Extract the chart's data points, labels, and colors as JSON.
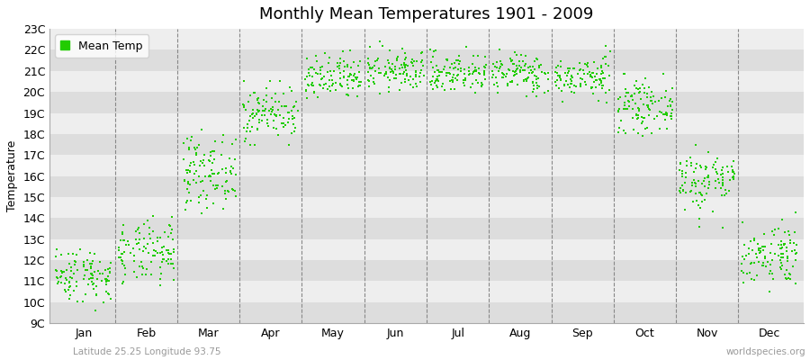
{
  "title": "Monthly Mean Temperatures 1901 - 2009",
  "ylabel": "Temperature",
  "xlabel_bottom_left": "Latitude 25.25 Longitude 93.75",
  "xlabel_bottom_right": "worldspecies.org",
  "legend_label": "Mean Temp",
  "marker_color": "#22CC00",
  "background_color": "#FFFFFF",
  "plot_bg_color": "#FFFFFF",
  "band_color_dark": "#DDDDDD",
  "band_color_light": "#EEEEEE",
  "ytick_labels": [
    "9C",
    "10C",
    "11C",
    "12C",
    "13C",
    "14C",
    "15C",
    "16C",
    "17C",
    "18C",
    "19C",
    "20C",
    "21C",
    "22C",
    "23C"
  ],
  "ytick_values": [
    9,
    10,
    11,
    12,
    13,
    14,
    15,
    16,
    17,
    18,
    19,
    20,
    21,
    22,
    23
  ],
  "ylim": [
    9,
    23
  ],
  "months": [
    "Jan",
    "Feb",
    "Mar",
    "Apr",
    "May",
    "Jun",
    "Jul",
    "Aug",
    "Sep",
    "Oct",
    "Nov",
    "Dec"
  ],
  "month_tick_positions": [
    0.5,
    1.5,
    2.5,
    3.5,
    4.5,
    5.5,
    6.5,
    7.5,
    8.5,
    9.5,
    10.5,
    11.5
  ],
  "month_edges": [
    0,
    1,
    2,
    3,
    4,
    5,
    6,
    7,
    8,
    9,
    10,
    11,
    12
  ],
  "xlim": [
    -0.05,
    12.05
  ],
  "seed": 42,
  "monthly_mean": [
    11.3,
    12.3,
    16.2,
    19.0,
    20.6,
    21.0,
    20.9,
    20.9,
    20.7,
    19.3,
    15.8,
    12.3
  ],
  "monthly_std": [
    0.65,
    0.75,
    0.85,
    0.65,
    0.55,
    0.48,
    0.48,
    0.48,
    0.48,
    0.58,
    0.75,
    0.75
  ],
  "monthly_min": [
    9.3,
    9.3,
    13.0,
    17.5,
    19.5,
    19.8,
    19.5,
    19.5,
    19.5,
    17.5,
    13.5,
    10.5
  ],
  "monthly_max": [
    13.2,
    14.3,
    18.2,
    20.5,
    22.5,
    22.5,
    22.5,
    22.5,
    22.2,
    21.5,
    17.5,
    14.5
  ],
  "n_years": 109,
  "marker_size": 4,
  "title_fontsize": 13,
  "axis_label_fontsize": 9,
  "tick_fontsize": 9,
  "legend_fontsize": 9
}
